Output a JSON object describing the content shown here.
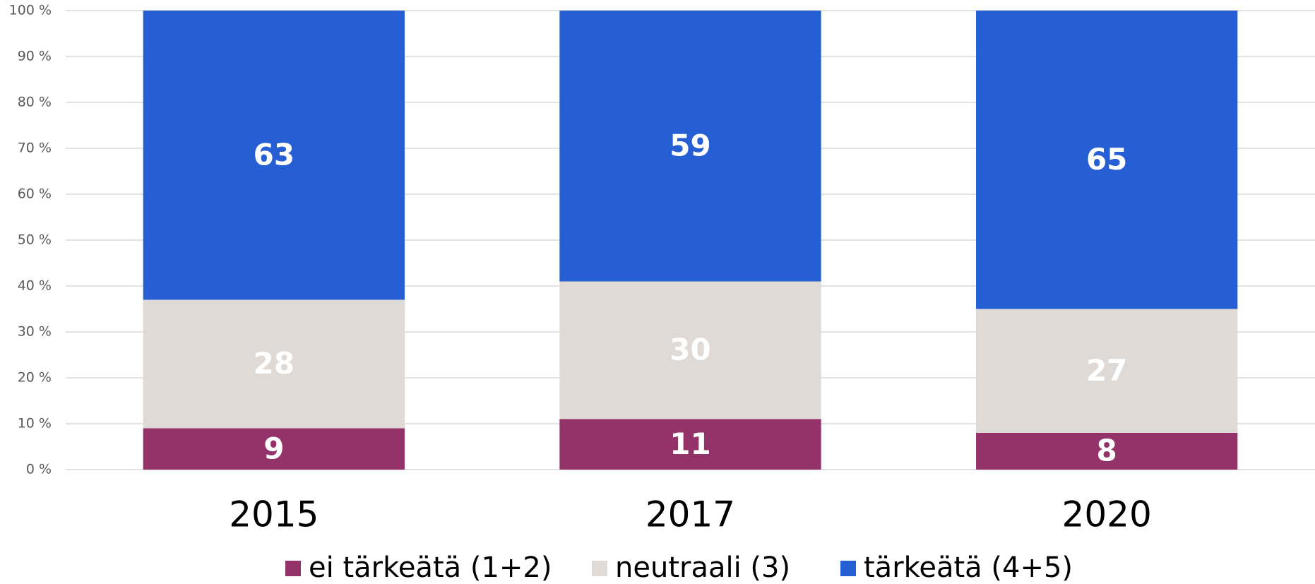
{
  "chart_data": {
    "type": "stacked_bar",
    "categories": [
      "2015",
      "2017",
      "2020"
    ],
    "series": [
      {
        "name": "ei tärkeätä (1+2)",
        "color": "#93336a",
        "values": [
          9,
          11,
          8
        ]
      },
      {
        "name": "neutraali (3)",
        "color": "#dfdad6",
        "values": [
          28,
          30,
          27
        ]
      },
      {
        "name": "tärkeätä (4+5)",
        "color": "#265fd3",
        "values": [
          63,
          59,
          65
        ]
      }
    ],
    "ylim": [
      0,
      100
    ],
    "yticks": [
      {
        "value": 0,
        "label": "0 %"
      },
      {
        "value": 10,
        "label": "10 %"
      },
      {
        "value": 20,
        "label": "20 %"
      },
      {
        "value": 30,
        "label": "30 %"
      },
      {
        "value": 40,
        "label": "40 %"
      },
      {
        "value": 50,
        "label": "50 %"
      },
      {
        "value": 60,
        "label": "60 %"
      },
      {
        "value": 70,
        "label": "70 %"
      },
      {
        "value": 80,
        "label": "80 %"
      },
      {
        "value": 90,
        "label": "90 %"
      },
      {
        "value": 100,
        "label": "100 %"
      }
    ],
    "grid": true,
    "legend": "bottom"
  }
}
